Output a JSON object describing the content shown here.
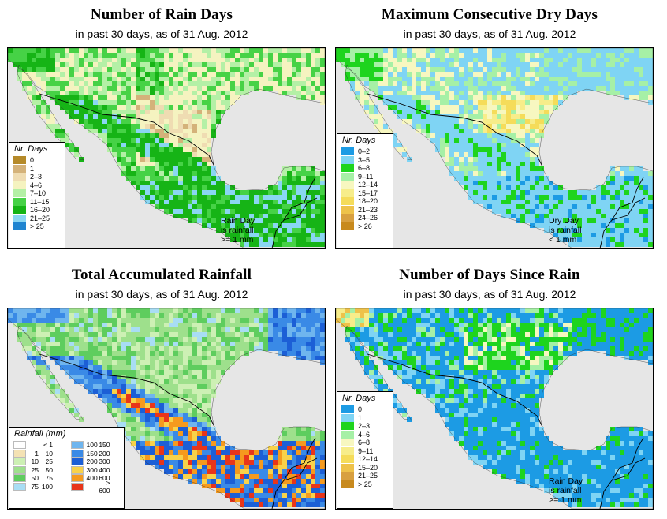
{
  "panels": [
    {
      "id": "rain-days",
      "title": "Number of Rain Days",
      "subtitle": "in past 30 days, as of  31 Aug. 2012",
      "legend_title": "Nr. Days",
      "legend": [
        {
          "label": "0",
          "color": "#b58a2a"
        },
        {
          "label": "1",
          "color": "#d4b27a"
        },
        {
          "label": "2–3",
          "color": "#efdcb2"
        },
        {
          "label": "4–6",
          "color": "#f5f3c0"
        },
        {
          "label": "7–10",
          "color": "#b4f0a6"
        },
        {
          "label": "11–15",
          "color": "#46d246"
        },
        {
          "label": "16–20",
          "color": "#16b416"
        },
        {
          "label": "21–25",
          "color": "#8ad6f2"
        },
        {
          "label": "> 25",
          "color": "#1f84d0"
        }
      ],
      "note": [
        "Rain Day",
        "is rainfall",
        ">= 1 mm"
      ]
    },
    {
      "id": "max-dry-days",
      "title": "Maximum Consecutive Dry Days",
      "subtitle": "in past 30 days, as of  31 Aug. 2012",
      "legend_title": "Nr. Days",
      "legend": [
        {
          "label": "0–2",
          "color": "#1c9be4"
        },
        {
          "label": "3–5",
          "color": "#7fd4f4"
        },
        {
          "label": "6–8",
          "color": "#1ed41e"
        },
        {
          "label": "9–11",
          "color": "#a6f0a6"
        },
        {
          "label": "12–14",
          "color": "#f7f7c0"
        },
        {
          "label": "15–17",
          "color": "#f7ed8a"
        },
        {
          "label": "18–20",
          "color": "#f5dc5a"
        },
        {
          "label": "21–23",
          "color": "#eec24a"
        },
        {
          "label": "24–26",
          "color": "#d8a040"
        },
        {
          "label": "> 26",
          "color": "#c88a1e"
        }
      ],
      "note": [
        "Dry Day",
        "is rainfall",
        "< 1 mm"
      ]
    },
    {
      "id": "total-rainfall",
      "title": "Total Accumulated Rainfall",
      "subtitle": "in past 30 days, as of  31 Aug. 2012",
      "legend_title": "Rainfall (mm)",
      "legend_left": [
        {
          "lo": "",
          "hi": "< 1",
          "color": "#ffffff"
        },
        {
          "lo": "1",
          "hi": "10",
          "color": "#f4e2b4"
        },
        {
          "lo": "10",
          "hi": "25",
          "color": "#cdf0b4"
        },
        {
          "lo": "25",
          "hi": "50",
          "color": "#9ee08c"
        },
        {
          "lo": "50",
          "hi": "75",
          "color": "#5ecd5e"
        },
        {
          "lo": "75",
          "hi": "100",
          "color": "#a8ddf4"
        }
      ],
      "legend_right": [
        {
          "lo": "100",
          "hi": "150",
          "color": "#6fb5ee"
        },
        {
          "lo": "150",
          "hi": "200",
          "color": "#3a8ae6"
        },
        {
          "lo": "200",
          "hi": "300",
          "color": "#1c5fd6"
        },
        {
          "lo": "300",
          "hi": "400",
          "color": "#f8d24a"
        },
        {
          "lo": "400",
          "hi": "600",
          "color": "#f59a1e"
        },
        {
          "lo": "",
          "hi": "> 600",
          "color": "#e8351a"
        }
      ]
    },
    {
      "id": "days-since-rain",
      "title": "Number of Days Since Rain",
      "subtitle": "in past 30 days, as of  31 Aug. 2012",
      "legend_title": "Nr. Days",
      "legend": [
        {
          "label": "0",
          "color": "#1c9be4"
        },
        {
          "label": "1",
          "color": "#7fd4f4"
        },
        {
          "label": "2–3",
          "color": "#1ed41e"
        },
        {
          "label": "4–6",
          "color": "#a6f0a6"
        },
        {
          "label": "6–8",
          "color": "#f7f7c0"
        },
        {
          "label": "9–11",
          "color": "#f7ed8a"
        },
        {
          "label": "12–14",
          "color": "#f5dc5a"
        },
        {
          "label": "15–20",
          "color": "#eec24a"
        },
        {
          "label": "21–25",
          "color": "#d8a040"
        },
        {
          "label": "> 25",
          "color": "#c88a1e"
        }
      ],
      "note": [
        "Rain Day",
        "is rainfall",
        ">= 1 mm"
      ]
    }
  ],
  "map_colors": {
    "ocean": "#e6e6e6",
    "border": "#000000"
  }
}
